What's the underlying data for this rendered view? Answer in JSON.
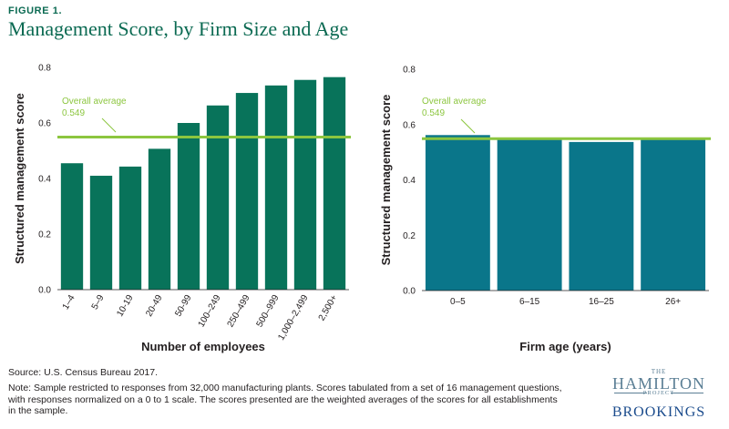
{
  "figure": {
    "label": "FIGURE 1.",
    "title": "Management Score, by Firm Size and Age"
  },
  "colors": {
    "title": "#0b6a52",
    "bar_left": "#08735a",
    "bar_right": "#0a768a",
    "average_line": "#8cc63f"
  },
  "chart_data": [
    {
      "type": "bar",
      "xlabel": "Number of employees",
      "ylabel": "Structured management score",
      "ylim": [
        0,
        0.8
      ],
      "yticks": [
        "0.0",
        "0.2",
        "0.4",
        "0.6",
        "0.8"
      ],
      "ytick_values": [
        0,
        0.2,
        0.4,
        0.6,
        0.8
      ],
      "categories": [
        "1–4",
        "5–9",
        "10-19",
        "20-49",
        "50-99",
        "100–249",
        "250–499",
        "500–999",
        "1,000–2,499",
        "2,500+"
      ],
      "values": [
        0.455,
        0.41,
        0.443,
        0.507,
        0.6,
        0.663,
        0.708,
        0.735,
        0.755,
        0.765
      ],
      "average": {
        "label": "Overall average",
        "value_label": "0.549",
        "value": 0.549
      },
      "grid": false,
      "xtick_rotation": "rotated"
    },
    {
      "type": "bar",
      "xlabel": "Firm age (years)",
      "ylabel": "Structured management score",
      "ylim": [
        0,
        0.8
      ],
      "yticks": [
        "0.0",
        "0.2",
        "0.4",
        "0.6",
        "0.8"
      ],
      "ytick_values": [
        0,
        0.2,
        0.4,
        0.6,
        0.8
      ],
      "categories": [
        "0–5",
        "6–15",
        "16–25",
        "26+"
      ],
      "values": [
        0.562,
        0.545,
        0.537,
        0.55
      ],
      "average": {
        "label": "Overall average",
        "value_label": "0.549",
        "value": 0.549
      },
      "grid": false,
      "xtick_rotation": "horizontal"
    }
  ],
  "footer": {
    "source": "Source: U.S. Census Bureau 2017.",
    "note": "Note: Sample restricted to responses from 32,000 manufacturing plants. Scores tabulated from a set of 16 management questions, with responses normalized on a 0 to 1 scale. The scores presented are the weighted averages of the scores for all establishments in the sample."
  },
  "logo": {
    "the": "THE",
    "hamilton": "HAMILTON",
    "project": "PROJECT",
    "brookings": "BROOKINGS"
  }
}
